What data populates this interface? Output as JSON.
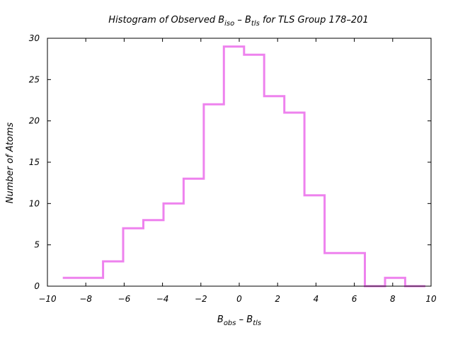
{
  "chart_data": {
    "type": "bar",
    "title": {
      "pre": "Histogram of Observed B",
      "sub1": "iso",
      "mid": " – B",
      "sub2": "tls",
      "post": " for TLS Group 178–201"
    },
    "xlabel": {
      "pre": "B",
      "sub1": "obs",
      "mid": " – B",
      "sub2": "tls"
    },
    "ylabel": "Number of Atoms",
    "xlim": [
      -10,
      10
    ],
    "ylim": [
      0,
      30
    ],
    "xticks": [
      -10,
      -8,
      -6,
      -4,
      -2,
      0,
      2,
      4,
      6,
      8,
      10
    ],
    "xtick_labels": [
      "−10",
      "−8",
      "−6",
      "−4",
      "−2",
      "0",
      "2",
      "4",
      "6",
      "8",
      "10"
    ],
    "yticks": [
      0,
      5,
      10,
      15,
      20,
      25,
      30
    ],
    "ytick_labels": [
      "0",
      "5",
      "10",
      "15",
      "20",
      "25",
      "30"
    ],
    "bin_edges": [
      -9.2,
      -7.1,
      -6.05,
      -5.0,
      -3.95,
      -2.9,
      -1.85,
      -0.8,
      0.25,
      1.3,
      2.35,
      3.4,
      4.45,
      5.5,
      6.55,
      7.6,
      8.65,
      9.7
    ],
    "values": [
      1,
      3,
      7,
      8,
      10,
      13,
      22,
      29,
      28,
      23,
      21,
      11,
      4,
      4,
      0,
      1,
      0
    ],
    "color": "#ee82ee",
    "grid": false,
    "legend": "none"
  }
}
